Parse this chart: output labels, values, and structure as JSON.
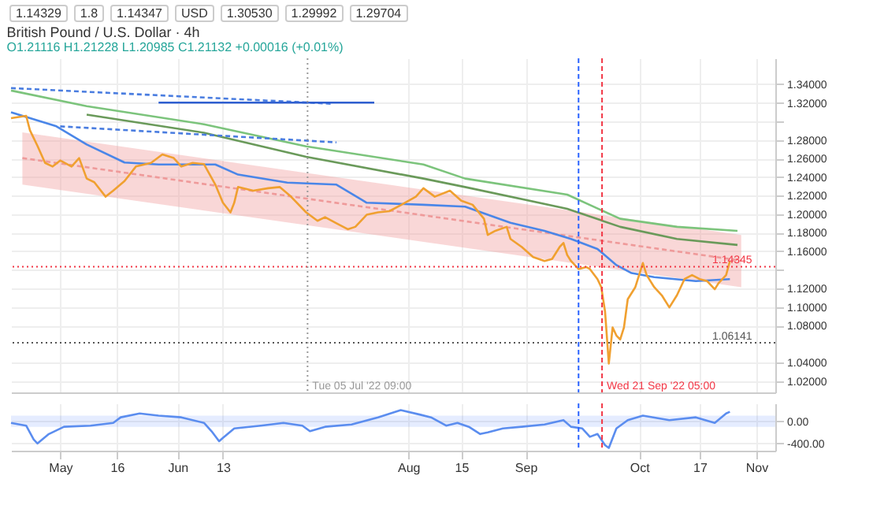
{
  "chart_data": [
    {
      "type": "line",
      "title": "British Pound / U.S. Dollar · 4h",
      "subtitle": "O1.21116 H1.21228 L1.20985 C1.21132 +0.00016 (+0.01%)",
      "annotations": [
        "1.14329",
        "1.8",
        "1.14347",
        "USD",
        "1.30530",
        "1.29992",
        "1.29704"
      ],
      "xlim": [
        "2022-04-18",
        "2022-11-06"
      ],
      "ylim": [
        1.008,
        1.368
      ],
      "xticks": [
        {
          "value": "2022-05-01",
          "label": null
        },
        {
          "value": "2022-05-16",
          "label": null
        },
        {
          "value": "2022-06-01",
          "label": null
        },
        {
          "value": "2022-06-13",
          "label": null
        },
        {
          "value": "2022-08-01",
          "label": null
        },
        {
          "value": "2022-08-15",
          "label": null
        },
        {
          "value": "2022-09-01",
          "label": null
        },
        {
          "value": "2022-10-01",
          "label": null
        },
        {
          "value": "2022-10-17",
          "label": null
        },
        {
          "value": "2022-11-01",
          "label": null
        }
      ],
      "yticks": [
        {
          "value": 1.02,
          "label": "1.02000"
        },
        {
          "value": 1.04,
          "label": "1.04000"
        },
        {
          "value": 1.08,
          "label": "1.08000"
        },
        {
          "value": 1.1,
          "label": "1.10000"
        },
        {
          "value": 1.12,
          "label": "1.12000"
        },
        {
          "value": 1.14,
          "label": null
        },
        {
          "value": 1.16,
          "label": "1.16000"
        },
        {
          "value": 1.18,
          "label": "1.18000"
        },
        {
          "value": 1.2,
          "label": "1.20000"
        },
        {
          "value": 1.22,
          "label": "1.22000"
        },
        {
          "value": 1.24,
          "label": "1.24000"
        },
        {
          "value": 1.26,
          "label": "1.26000"
        },
        {
          "value": 1.28,
          "label": "1.28000"
        },
        {
          "value": 1.3,
          "label": null
        },
        {
          "value": 1.32,
          "label": "1.32000"
        },
        {
          "value": 1.34,
          "label": "1.34000"
        }
      ],
      "grid": true,
      "tick_labels": "y",
      "series": [
        {
          "color": "#ef9a9a",
          "line_style": "dashed",
          "x": [
            "2022-04-21",
            "2022-10-28"
          ],
          "values": [
            1.2605,
            1.15
          ],
          "lower": [
            1.2319,
            1.1214
          ],
          "upper": [
            1.2882,
            1.1777
          ]
        },
        {
          "color": "#6a9a5a",
          "x": [
            "2022-05-08",
            "2022-06-08",
            "2022-07-05",
            "2022-08-05",
            "2022-08-16",
            "2022-09-12",
            "2022-09-26",
            "2022-10-11",
            "2022-10-27"
          ],
          "values": [
            1.3073,
            1.2878,
            1.2618,
            1.2384,
            1.2293,
            1.2059,
            1.1864,
            1.1734,
            1.1669
          ]
        },
        {
          "color": "#7cc47c",
          "x": [
            "2022-04-18",
            "2022-05-08",
            "2022-06-08",
            "2022-07-05",
            "2022-08-05",
            "2022-08-16",
            "2022-09-12",
            "2022-09-26",
            "2022-10-11",
            "2022-10-27"
          ],
          "values": [
            1.3333,
            1.3164,
            1.2969,
            1.2731,
            1.2536,
            1.2384,
            1.2211,
            1.1951,
            1.1864,
            1.1821
          ]
        },
        {
          "color": "#4a7de0",
          "line_style": "dashed",
          "x": [
            "2022-04-18",
            "2022-07-12"
          ],
          "values": [
            1.3359,
            1.319
          ]
        },
        {
          "color": "#4a7de0",
          "line_style": "dashed",
          "x": [
            "2022-05-01",
            "2022-07-13"
          ],
          "values": [
            1.2947,
            1.2774
          ]
        },
        {
          "color": "#2f5fd0",
          "x": [
            "2022-05-27",
            "2022-07-23"
          ],
          "values": [
            1.3203,
            1.3203
          ]
        },
        {
          "color": "#4a86e8",
          "x": [
            "2022-04-18",
            "2022-04-30",
            "2022-05-08",
            "2022-05-18",
            "2022-05-27",
            "2022-06-11",
            "2022-06-17",
            "2022-06-30",
            "2022-07-13",
            "2022-07-21",
            "2022-08-05",
            "2022-08-16",
            "2022-08-28",
            "2022-09-06",
            "2022-09-13",
            "2022-09-20",
            "2022-09-25",
            "2022-09-29",
            "2022-10-05",
            "2022-10-16",
            "2022-10-25"
          ],
          "values": [
            1.3099,
            1.2947,
            1.2752,
            1.2557,
            1.2536,
            1.2536,
            1.2427,
            1.2341,
            1.2319,
            1.2124,
            1.2102,
            1.2081,
            1.1907,
            1.1821,
            1.1734,
            1.1626,
            1.1452,
            1.1366,
            1.1322,
            1.1279,
            1.1301
          ]
        },
        {
          "color": "#f0a030",
          "x": [
            "2022-04-18",
            "2022-04-22",
            "2022-04-23",
            "2022-04-25",
            "2022-04-27",
            "2022-04-29",
            "2022-05-01",
            "2022-05-04",
            "2022-05-06",
            "2022-05-08",
            "2022-05-10",
            "2022-05-13",
            "2022-05-15",
            "2022-05-18",
            "2022-05-21",
            "2022-05-25",
            "2022-05-28",
            "2022-05-31",
            "2022-06-02",
            "2022-06-05",
            "2022-06-08",
            "2022-06-11",
            "2022-06-13",
            "2022-06-15",
            "2022-06-16",
            "2022-06-17",
            "2022-06-21",
            "2022-06-25",
            "2022-06-28",
            "2022-07-01",
            "2022-07-05",
            "2022-07-08",
            "2022-07-10",
            "2022-07-13",
            "2022-07-16",
            "2022-07-18",
            "2022-07-21",
            "2022-07-24",
            "2022-07-27",
            "2022-07-30",
            "2022-08-03",
            "2022-08-05",
            "2022-08-08",
            "2022-08-12",
            "2022-08-15",
            "2022-08-18",
            "2022-08-21",
            "2022-08-22",
            "2022-08-24",
            "2022-08-27",
            "2022-08-28",
            "2022-08-31",
            "2022-09-03",
            "2022-09-06",
            "2022-09-08",
            "2022-09-10",
            "2022-09-11",
            "2022-09-12",
            "2022-09-13",
            "2022-09-15",
            "2022-09-17",
            "2022-09-18",
            "2022-09-20",
            "2022-09-21",
            "2022-09-22",
            "2022-09-23",
            "2022-09-24",
            "2022-09-25",
            "2022-09-26",
            "2022-09-27",
            "2022-09-28",
            "2022-09-30",
            "2022-10-02",
            "2022-10-03",
            "2022-10-05",
            "2022-10-07",
            "2022-10-09",
            "2022-10-11",
            "2022-10-13",
            "2022-10-15",
            "2022-10-17",
            "2022-10-19",
            "2022-10-21",
            "2022-10-22",
            "2022-10-24",
            "2022-10-25"
          ],
          "values": [
            1.3034,
            1.306,
            1.2904,
            1.2735,
            1.2553,
            1.2514,
            1.2579,
            1.2514,
            1.2605,
            1.2384,
            1.2345,
            1.2189,
            1.2254,
            1.2358,
            1.2514,
            1.2553,
            1.2644,
            1.2605,
            1.2514,
            1.2553,
            1.254,
            1.2319,
            1.2124,
            1.202,
            1.2124,
            1.2293,
            1.2254,
            1.228,
            1.2293,
            1.2189,
            1.202,
            1.1929,
            1.1968,
            1.1903,
            1.1838,
            1.1864,
            1.1994,
            1.202,
            1.2033,
            1.2098,
            1.2189,
            1.228,
            1.2189,
            1.2254,
            1.2146,
            1.2102,
            1.1951,
            1.1777,
            1.1821,
            1.1864,
            1.1734,
            1.1647,
            1.1539,
            1.1496,
            1.1517,
            1.1647,
            1.1691,
            1.1561,
            1.1496,
            1.1409,
            1.1431,
            1.1409,
            1.1301,
            1.1214,
            1.0953,
            1.039,
            1.078,
            1.0693,
            1.065,
            1.078,
            1.1084,
            1.1214,
            1.1474,
            1.1344,
            1.1214,
            1.1126,
            1.0996,
            1.1126,
            1.1301,
            1.1344,
            1.1301,
            1.1279,
            1.1191,
            1.1257,
            1.1344,
            1.1496
          ]
        }
      ],
      "ref_lines": [
        {
          "axis": "y",
          "value": 1.14345,
          "label": "1.14345",
          "color": "#f23645",
          "line_style": "dotted"
        },
        {
          "axis": "y",
          "value": 1.06141,
          "label": "1.06141",
          "color": "#555555",
          "line_style": "dotted"
        },
        {
          "axis": "x",
          "value": "2022-07-05T09:00",
          "label": "Tue 05 Jul '22 09:00",
          "color": "#999999",
          "line_style": "dotted"
        },
        {
          "axis": "x",
          "value": "2022-09-15",
          "color": "#2962ff",
          "line_style": "dashed"
        },
        {
          "axis": "x",
          "value": "2022-09-21T05:00",
          "label": "Wed 21 Sep '22 05:00",
          "color": "#f23645",
          "line_style": "dashed"
        }
      ]
    },
    {
      "type": "line",
      "xlim": [
        "2022-04-18",
        "2022-11-06"
      ],
      "ylim": [
        -530,
        320
      ],
      "xticks": [
        {
          "value": "2022-05-01",
          "label": "May"
        },
        {
          "value": "2022-05-16",
          "label": "16"
        },
        {
          "value": "2022-06-01",
          "label": "Jun"
        },
        {
          "value": "2022-06-13",
          "label": "13"
        },
        {
          "value": "2022-08-01",
          "label": "Aug"
        },
        {
          "value": "2022-08-15",
          "label": "15"
        },
        {
          "value": "2022-09-01",
          "label": "Sep"
        },
        {
          "value": "2022-10-01",
          "label": "Oct"
        },
        {
          "value": "2022-10-17",
          "label": "17"
        },
        {
          "value": "2022-11-01",
          "label": "Nov"
        }
      ],
      "yticks": [
        {
          "value": 0,
          "label": "0.00"
        },
        {
          "value": -400,
          "label": "-400.00"
        }
      ],
      "grid": true,
      "bands": [
        {
          "axis": "y",
          "from": -100,
          "to": 100,
          "color": "#2962ff"
        }
      ],
      "ref_lines": [
        {
          "axis": "x",
          "value": "2022-09-15",
          "color": "#2962ff",
          "line_style": "dashed"
        },
        {
          "axis": "x",
          "value": "2022-09-21T05:00",
          "color": "#f23645",
          "line_style": "dashed"
        }
      ],
      "series": [
        {
          "color": "#5b8def",
          "x": [
            "2022-04-18",
            "2022-04-22",
            "2022-04-24",
            "2022-04-25",
            "2022-04-28",
            "2022-05-02",
            "2022-05-09",
            "2022-05-15",
            "2022-05-17",
            "2022-05-22",
            "2022-05-27",
            "2022-06-02",
            "2022-06-08",
            "2022-06-10",
            "2022-06-12",
            "2022-06-13",
            "2022-06-16",
            "2022-06-23",
            "2022-06-29",
            "2022-07-04",
            "2022-07-06",
            "2022-07-10",
            "2022-07-17",
            "2022-07-24",
            "2022-07-30",
            "2022-08-04",
            "2022-08-07",
            "2022-08-11",
            "2022-08-14",
            "2022-08-17",
            "2022-08-20",
            "2022-08-22",
            "2022-08-26",
            "2022-08-31",
            "2022-09-06",
            "2022-09-11",
            "2022-09-13",
            "2022-09-16",
            "2022-09-18",
            "2022-09-20",
            "2022-09-22",
            "2022-09-23",
            "2022-09-25",
            "2022-09-28",
            "2022-10-02",
            "2022-10-09",
            "2022-10-16",
            "2022-10-21",
            "2022-10-24",
            "2022-10-25"
          ],
          "values": [
            -30,
            -80,
            -330,
            -400,
            -230,
            -100,
            -80,
            -30,
            70,
            140,
            100,
            70,
            -30,
            -180,
            -360,
            -300,
            -130,
            -80,
            -30,
            -80,
            -180,
            -100,
            -60,
            70,
            200,
            120,
            70,
            -80,
            -30,
            -100,
            -230,
            -200,
            -130,
            -100,
            -60,
            20,
            -100,
            -130,
            -280,
            -230,
            -430,
            -480,
            -130,
            20,
            100,
            20,
            70,
            -30,
            140,
            170
          ]
        }
      ]
    }
  ]
}
